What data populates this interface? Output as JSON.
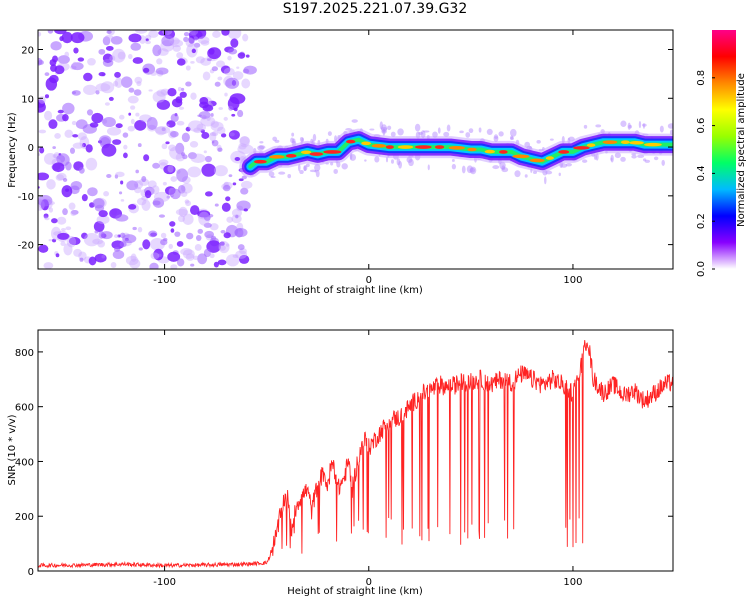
{
  "title": "S197.2025.221.07.39.G32",
  "chart_data": [
    {
      "type": "heatmap",
      "name": "spectrogram",
      "xlabel": "Height of straight line (km)",
      "ylabel": "Frequency (Hz)",
      "xlim": [
        -162,
        149
      ],
      "ylim": [
        -25,
        24
      ],
      "xticks": [
        -100,
        0,
        100
      ],
      "yticks": [
        -20,
        -10,
        0,
        10,
        20
      ],
      "noise_region": [
        -162,
        -58
      ],
      "band_center": [
        [
          -58,
          -4
        ],
        [
          -55,
          -3
        ],
        [
          -50,
          -3
        ],
        [
          -45,
          -2
        ],
        [
          -40,
          -2
        ],
        [
          -35,
          -1.5
        ],
        [
          -30,
          -1
        ],
        [
          -25,
          -1.5
        ],
        [
          -20,
          -1
        ],
        [
          -15,
          -1
        ],
        [
          -10,
          1
        ],
        [
          -5,
          1.5
        ],
        [
          0,
          0.5
        ],
        [
          10,
          0
        ],
        [
          20,
          0
        ],
        [
          30,
          0
        ],
        [
          40,
          0
        ],
        [
          50,
          -0.5
        ],
        [
          55,
          -0.5
        ],
        [
          60,
          -1
        ],
        [
          65,
          -1
        ],
        [
          70,
          -1
        ],
        [
          75,
          -2
        ],
        [
          80,
          -2.5
        ],
        [
          85,
          -3
        ],
        [
          90,
          -2
        ],
        [
          95,
          -1
        ],
        [
          100,
          -1
        ],
        [
          105,
          0
        ],
        [
          110,
          0.5
        ],
        [
          115,
          1
        ],
        [
          120,
          1
        ],
        [
          125,
          1
        ],
        [
          130,
          1
        ],
        [
          135,
          0.5
        ],
        [
          140,
          0.5
        ],
        [
          145,
          0.5
        ],
        [
          149,
          0.5
        ]
      ],
      "colorbar": {
        "label": "Normalized spectral amplitude",
        "range": [
          0,
          1
        ],
        "ticks": [
          "0.0",
          "0.2",
          "0.4",
          "0.6",
          "0.8"
        ],
        "tick_values": [
          0.0,
          0.2,
          0.4,
          0.6,
          0.8
        ],
        "stops": [
          "#ffffff",
          "#8800ff",
          "#0000ff",
          "#00bbff",
          "#00ff66",
          "#99ff00",
          "#ffff00",
          "#ff8800",
          "#ff0000",
          "#ff0088"
        ]
      }
    },
    {
      "type": "line",
      "name": "snr",
      "xlabel": "Height of straight line (km)",
      "ylabel": "SNR (10 * v/v)",
      "xlim": [
        -162,
        149
      ],
      "ylim": [
        0,
        880
      ],
      "xticks": [
        -100,
        0,
        100
      ],
      "yticks": [
        0,
        200,
        400,
        600,
        800
      ],
      "line_color": "#ff2222",
      "series": [
        {
          "name": "SNR envelope",
          "x": [
            -162,
            -140,
            -120,
            -100,
            -80,
            -60,
            -50,
            -48,
            -45,
            -42,
            -40,
            -38,
            -35,
            -30,
            -28,
            -25,
            -22,
            -20,
            -18,
            -15,
            -12,
            -10,
            -8,
            -5,
            -2,
            0,
            5,
            10,
            15,
            20,
            25,
            30,
            35,
            40,
            45,
            50,
            55,
            60,
            65,
            70,
            75,
            80,
            85,
            90,
            95,
            100,
            103,
            105,
            107,
            110,
            115,
            120,
            125,
            130,
            135,
            140,
            145,
            149
          ],
          "y": [
            20,
            22,
            25,
            20,
            22,
            25,
            30,
            60,
            140,
            250,
            280,
            150,
            250,
            300,
            220,
            320,
            360,
            300,
            420,
            300,
            340,
            400,
            300,
            420,
            480,
            450,
            500,
            550,
            560,
            600,
            640,
            660,
            680,
            670,
            690,
            690,
            700,
            680,
            700,
            690,
            720,
            700,
            680,
            700,
            680,
            650,
            720,
            780,
            860,
            700,
            650,
            680,
            640,
            660,
            620,
            650,
            680,
            690
          ]
        }
      ]
    }
  ]
}
